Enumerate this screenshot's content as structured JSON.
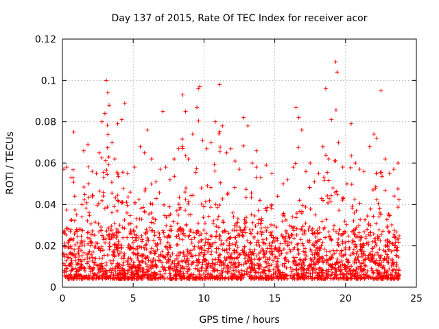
{
  "chart_data": {
    "type": "scatter",
    "title": "Day 137 of 2015, Rate Of TEC Index for receiver acor",
    "xlabel": "GPS time / hours",
    "ylabel": "ROTI / TECUs",
    "xlim": [
      0,
      25
    ],
    "ylim": [
      0,
      0.12
    ],
    "x_ticks": [
      0,
      5,
      10,
      15,
      20,
      25
    ],
    "y_ticks": [
      0,
      0.02,
      0.04,
      0.06,
      0.08,
      0.1,
      0.12
    ],
    "x_tick_labels": [
      "0",
      "5",
      "10",
      "15",
      "20",
      "25"
    ],
    "y_tick_labels": [
      "0",
      "0.02",
      "0.04",
      "0.06",
      "0.08",
      "0.1",
      "0.12"
    ],
    "grid": true,
    "marker": "plus",
    "series": [
      {
        "color": "#ff0000",
        "points": [
          [
            0.1,
            0.057
          ],
          [
            0.3,
            0.058
          ],
          [
            0.6,
            0.053
          ],
          [
            0.8,
            0.075
          ],
          [
            1.0,
            0.035
          ],
          [
            1.2,
            0.028
          ],
          [
            1.5,
            0.066
          ],
          [
            1.8,
            0.069
          ],
          [
            2.1,
            0.056
          ],
          [
            2.4,
            0.055
          ],
          [
            2.6,
            0.065
          ],
          [
            2.8,
            0.08
          ],
          [
            3.0,
            0.084
          ],
          [
            3.1,
            0.1
          ],
          [
            3.2,
            0.094
          ],
          [
            3.3,
            0.088
          ],
          [
            3.5,
            0.07
          ],
          [
            3.7,
            0.062
          ],
          [
            3.9,
            0.079
          ],
          [
            4.2,
            0.081
          ],
          [
            4.4,
            0.089
          ],
          [
            4.6,
            0.055
          ],
          [
            4.8,
            0.046
          ],
          [
            5.1,
            0.058
          ],
          [
            5.5,
            0.068
          ],
          [
            5.8,
            0.065
          ],
          [
            6.0,
            0.076
          ],
          [
            6.3,
            0.062
          ],
          [
            6.6,
            0.051
          ],
          [
            6.9,
            0.057
          ],
          [
            7.1,
            0.085
          ],
          [
            7.3,
            0.058
          ],
          [
            7.6,
            0.052
          ],
          [
            7.9,
            0.062
          ],
          [
            8.2,
            0.067
          ],
          [
            8.5,
            0.093
          ],
          [
            8.7,
            0.085
          ],
          [
            8.9,
            0.062
          ],
          [
            9.2,
            0.074
          ],
          [
            9.5,
            0.087
          ],
          [
            9.6,
            0.096
          ],
          [
            9.7,
            0.097
          ],
          [
            9.9,
            0.071
          ],
          [
            10.2,
            0.067
          ],
          [
            10.5,
            0.07
          ],
          [
            10.8,
            0.08
          ],
          [
            11.1,
            0.098
          ],
          [
            11.3,
            0.078
          ],
          [
            11.6,
            0.065
          ],
          [
            11.9,
            0.067
          ],
          [
            12.2,
            0.061
          ],
          [
            12.5,
            0.057
          ],
          [
            12.8,
            0.082
          ],
          [
            13.1,
            0.078
          ],
          [
            13.4,
            0.06
          ],
          [
            13.7,
            0.066
          ],
          [
            14.0,
            0.053
          ],
          [
            14.4,
            0.059
          ],
          [
            14.8,
            0.055
          ],
          [
            15.2,
            0.044
          ],
          [
            15.6,
            0.05
          ],
          [
            15.9,
            0.052
          ],
          [
            16.3,
            0.058
          ],
          [
            16.5,
            0.087
          ],
          [
            16.7,
            0.082
          ],
          [
            16.9,
            0.076
          ],
          [
            17.2,
            0.056
          ],
          [
            17.5,
            0.06
          ],
          [
            17.8,
            0.051
          ],
          [
            18.1,
            0.055
          ],
          [
            18.4,
            0.068
          ],
          [
            18.6,
            0.096
          ],
          [
            18.8,
            0.062
          ],
          [
            19.0,
            0.081
          ],
          [
            19.3,
            0.109
          ],
          [
            19.4,
            0.104
          ],
          [
            19.5,
            0.07
          ],
          [
            19.8,
            0.058
          ],
          [
            20.1,
            0.05
          ],
          [
            20.4,
            0.079
          ],
          [
            20.7,
            0.06
          ],
          [
            21.0,
            0.057
          ],
          [
            21.3,
            0.056
          ],
          [
            21.7,
            0.068
          ],
          [
            22.0,
            0.074
          ],
          [
            22.2,
            0.072
          ],
          [
            22.5,
            0.095
          ],
          [
            22.8,
            0.062
          ],
          [
            23.1,
            0.055
          ],
          [
            23.4,
            0.057
          ],
          [
            23.7,
            0.06
          ]
        ]
      }
    ]
  }
}
